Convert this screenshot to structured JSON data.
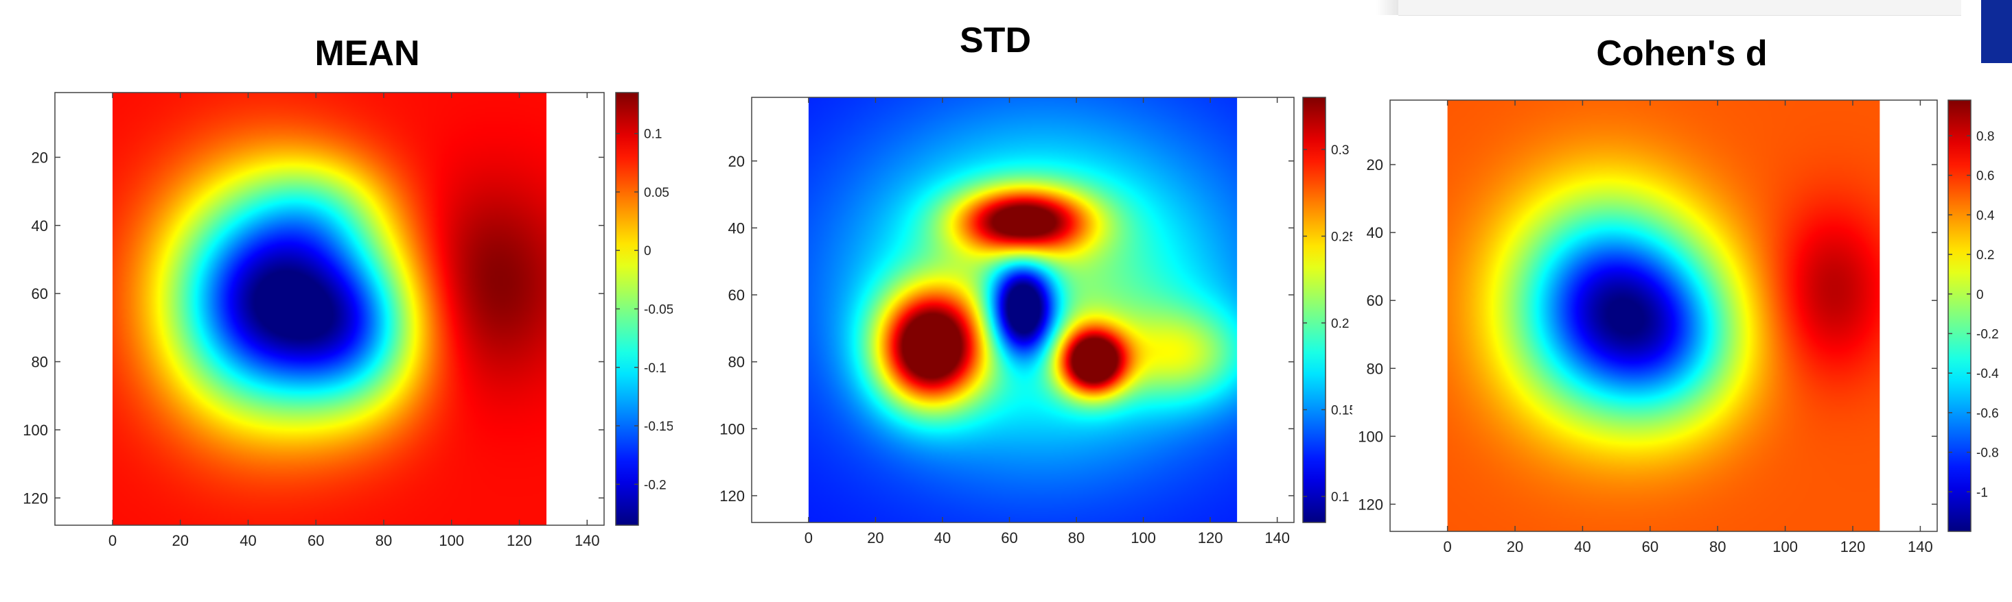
{
  "colormap": "jet",
  "chart_data": [
    {
      "type": "heatmap",
      "title": "MEAN",
      "xlim": [
        -17,
        145
      ],
      "ylim": [
        128,
        1
      ],
      "xticks": [
        0,
        20,
        40,
        60,
        80,
        100,
        120,
        140
      ],
      "yticks": [
        20,
        40,
        60,
        80,
        100,
        120
      ],
      "grid": false,
      "data_x_range": [
        0,
        128
      ],
      "data_y_range": [
        1,
        128
      ],
      "background": 0.085,
      "blobs": [
        {
          "cx": 45,
          "cy": 62,
          "sx": 20,
          "sy": 23,
          "v": -0.305
        },
        {
          "cx": 72,
          "cy": 70,
          "sx": 15,
          "sy": 18,
          "v": -0.16
        },
        {
          "cx": 62,
          "cy": 35,
          "sx": 14,
          "sy": 11,
          "v": -0.06
        },
        {
          "cx": 112,
          "cy": 57,
          "sx": 16,
          "sy": 20,
          "v": 0.05
        }
      ],
      "colorbar": {
        "min": -0.235,
        "max": 0.135,
        "ticks": [
          0.1,
          0.05,
          0,
          -0.05,
          -0.1,
          -0.15,
          -0.2
        ],
        "tick_labels": [
          "0.1",
          "0.05",
          "0",
          "-0.05",
          "-0.1",
          "-0.15",
          "-0.2"
        ]
      }
    },
    {
      "type": "heatmap",
      "title": "STD",
      "xlim": [
        -17,
        145
      ],
      "ylim": [
        128,
        1
      ],
      "xticks": [
        0,
        20,
        40,
        60,
        80,
        100,
        120,
        140
      ],
      "yticks": [
        20,
        40,
        60,
        80,
        100,
        120
      ],
      "grid": false,
      "data_x_range": [
        0,
        128
      ],
      "data_y_range": [
        1,
        128
      ],
      "background": 0.12,
      "blobs": [
        {
          "cx": 70,
          "cy": 58,
          "sx": 40,
          "sy": 34,
          "v": 0.09
        },
        {
          "cx": 36,
          "cy": 76,
          "sx": 11,
          "sy": 12,
          "v": 0.21
        },
        {
          "cx": 64,
          "cy": 38,
          "sx": 14,
          "sy": 7,
          "v": 0.17
        },
        {
          "cx": 85,
          "cy": 80,
          "sx": 7,
          "sy": 7,
          "v": 0.2
        },
        {
          "cx": 112,
          "cy": 78,
          "sx": 14,
          "sy": 10,
          "v": 0.07
        },
        {
          "cx": 64,
          "cy": 64,
          "sx": 7,
          "sy": 10,
          "v": -0.17
        }
      ],
      "colorbar": {
        "min": 0.085,
        "max": 0.33,
        "ticks": [
          0.3,
          0.25,
          0.2,
          0.15,
          0.1
        ],
        "tick_labels": [
          "0.3",
          "0.25",
          "0.2",
          "0.15",
          "0.1"
        ]
      }
    },
    {
      "type": "heatmap",
      "title": "Cohen's d",
      "xlim": [
        -17,
        145
      ],
      "ylim": [
        128,
        1
      ],
      "xticks": [
        0,
        20,
        40,
        60,
        80,
        100,
        120,
        140
      ],
      "yticks": [
        20,
        40,
        60,
        80,
        100,
        120
      ],
      "grid": false,
      "data_x_range": [
        0,
        128
      ],
      "data_y_range": [
        1,
        128
      ],
      "background": 0.52,
      "blobs": [
        {
          "cx": 47,
          "cy": 62,
          "sx": 20,
          "sy": 22,
          "v": -1.5
        },
        {
          "cx": 68,
          "cy": 72,
          "sx": 16,
          "sy": 18,
          "v": -0.6
        },
        {
          "cx": 114,
          "cy": 57,
          "sx": 12,
          "sy": 17,
          "v": 0.34
        }
      ],
      "colorbar": {
        "min": -1.2,
        "max": 0.98,
        "ticks": [
          0.8,
          0.6,
          0.4,
          0.2,
          0,
          -0.2,
          -0.4,
          -0.6,
          -0.8,
          -1
        ],
        "tick_labels": [
          "0.8",
          "0.6",
          "0.4",
          "0.2",
          "0",
          "-0.2",
          "-0.4",
          "-0.6",
          "-0.8",
          "-1"
        ]
      }
    }
  ]
}
